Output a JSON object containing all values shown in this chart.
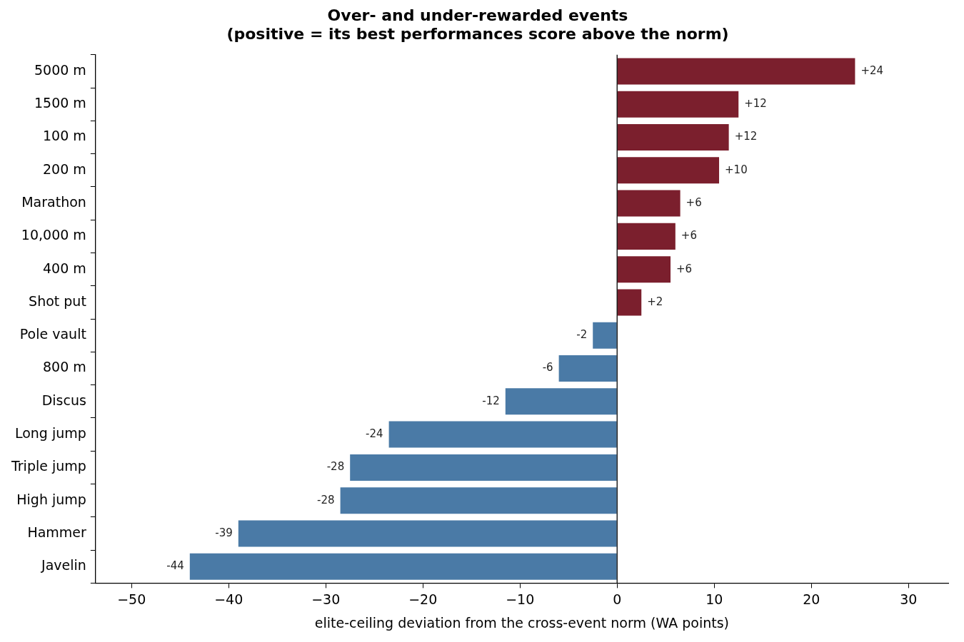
{
  "chart_data": {
    "type": "bar",
    "orientation": "horizontal",
    "title": "Over- and under-rewarded events\n(positive = its best performances score above the norm)",
    "xlabel": "elite-ceiling deviation from the cross-event norm (WA points)",
    "categories": [
      "5000 m",
      "1500 m",
      "100 m",
      "200 m",
      "Marathon",
      "10,000 m",
      "400 m",
      "Shot put",
      "Pole vault",
      "800 m",
      "Discus",
      "Long jump",
      "Triple jump",
      "High jump",
      "Hammer",
      "Javelin"
    ],
    "values": [
      24.5,
      12.5,
      11.5,
      10.5,
      6.5,
      6.0,
      5.5,
      2.5,
      -2.5,
      -6.0,
      -11.5,
      -23.5,
      -27.5,
      -28.5,
      -39.0,
      -44.0
    ],
    "value_labels": [
      "+24",
      "+12",
      "+12",
      "+10",
      "+6",
      "+6",
      "+6",
      "+2",
      "-2",
      "-6",
      "-12",
      "-24",
      "-28",
      "-28",
      "-39",
      "-44"
    ],
    "colors": [
      "#7b1f2d",
      "#7b1f2d",
      "#7b1f2d",
      "#7b1f2d",
      "#7b1f2d",
      "#7b1f2d",
      "#7b1f2d",
      "#7b1f2d",
      "#4a7aa6",
      "#4a7aa6",
      "#4a7aa6",
      "#4a7aa6",
      "#4a7aa6",
      "#4a7aa6",
      "#4a7aa6",
      "#4a7aa6"
    ],
    "xlim": [
      -53.7,
      34.1
    ],
    "xticks": [
      {
        "value": -50,
        "label": "−50"
      },
      {
        "value": -40,
        "label": "−40"
      },
      {
        "value": -30,
        "label": "−30"
      },
      {
        "value": -20,
        "label": "−20"
      },
      {
        "value": -10,
        "label": "−10"
      },
      0,
      10,
      20,
      30
    ],
    "ref_lines": [
      {
        "axis": "x",
        "value": 0,
        "color": "#000000"
      }
    ],
    "grid": false,
    "legend": false
  }
}
